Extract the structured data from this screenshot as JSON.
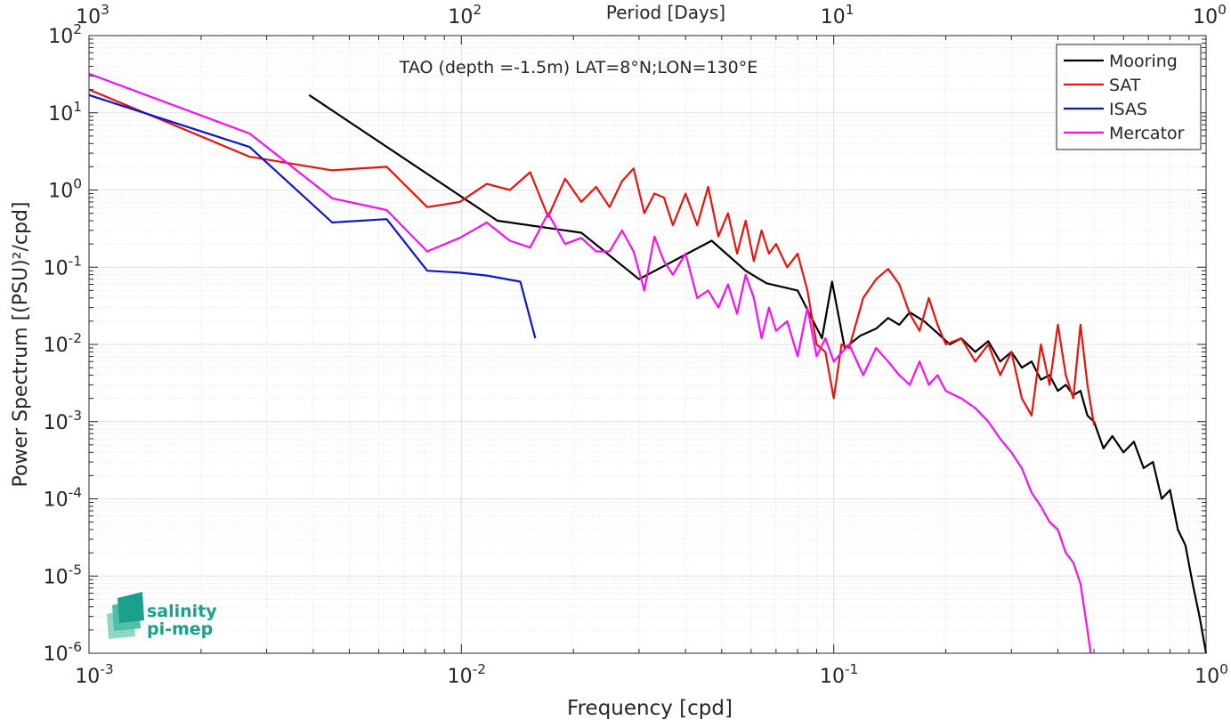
{
  "chart_data": {
    "type": "line",
    "title": "TAO (depth =-1.5m) LAT=8°N;LON=130°E",
    "xlabel": "Frequency [cpd]",
    "ylabel": "Power Spectrum [(PSU)²/cpd]",
    "top_xlabel": "Period [Days]",
    "x_scale": "log",
    "y_scale": "log",
    "xlim": [
      0.001,
      1
    ],
    "ylim": [
      1e-06,
      100
    ],
    "grid": true,
    "legend_position": "top-right",
    "x_ticks": [
      {
        "value": 0.001,
        "base": "10",
        "exp": "-3"
      },
      {
        "value": 0.01,
        "base": "10",
        "exp": "-2"
      },
      {
        "value": 0.1,
        "base": "10",
        "exp": "-1"
      },
      {
        "value": 1,
        "base": "10",
        "exp": "0"
      }
    ],
    "top_x_ticks": [
      {
        "value": 0.001,
        "base": "10",
        "exp": "3"
      },
      {
        "value": 0.01,
        "base": "10",
        "exp": "2"
      },
      {
        "value": 0.1,
        "base": "10",
        "exp": "1"
      },
      {
        "value": 1,
        "base": "10",
        "exp": "0"
      }
    ],
    "y_ticks": [
      {
        "value": 1e-06,
        "base": "10",
        "exp": "-6"
      },
      {
        "value": 1e-05,
        "base": "10",
        "exp": "-5"
      },
      {
        "value": 0.0001,
        "base": "10",
        "exp": "-4"
      },
      {
        "value": 0.001,
        "base": "10",
        "exp": "-3"
      },
      {
        "value": 0.01,
        "base": "10",
        "exp": "-2"
      },
      {
        "value": 0.1,
        "base": "10",
        "exp": "-1"
      },
      {
        "value": 1,
        "base": "10",
        "exp": "0"
      },
      {
        "value": 10,
        "base": "10",
        "exp": "1"
      },
      {
        "value": 100,
        "base": "10",
        "exp": "2"
      }
    ],
    "series": [
      {
        "name": "Mooring",
        "color": "#000000",
        "x": [
          0.0039,
          0.0125,
          0.021,
          0.03,
          0.047,
          0.058,
          0.066,
          0.08,
          0.093,
          0.099,
          0.107,
          0.118,
          0.13,
          0.14,
          0.15,
          0.16,
          0.175,
          0.19,
          0.205,
          0.22,
          0.24,
          0.26,
          0.28,
          0.3,
          0.32,
          0.34,
          0.36,
          0.38,
          0.4,
          0.42,
          0.44,
          0.46,
          0.48,
          0.5,
          0.53,
          0.56,
          0.6,
          0.64,
          0.68,
          0.72,
          0.76,
          0.8,
          0.84,
          0.88,
          0.92,
          0.96,
          1.0
        ],
        "y": [
          17,
          0.4,
          0.28,
          0.07,
          0.22,
          0.09,
          0.062,
          0.05,
          0.012,
          0.065,
          0.009,
          0.013,
          0.016,
          0.022,
          0.018,
          0.026,
          0.02,
          0.014,
          0.01,
          0.012,
          0.008,
          0.011,
          0.006,
          0.008,
          0.005,
          0.006,
          0.0035,
          0.004,
          0.0025,
          0.003,
          0.0022,
          0.0025,
          0.0012,
          0.001,
          0.00045,
          0.00065,
          0.0004,
          0.00055,
          0.00025,
          0.0003,
          0.0001,
          0.00013,
          4e-05,
          2.5e-05,
          8e-06,
          3e-06,
          1e-06
        ]
      },
      {
        "name": "SAT",
        "color": "#e8140c",
        "x": [
          0.001,
          0.0027,
          0.0045,
          0.0063,
          0.0081,
          0.0099,
          0.0117,
          0.0135,
          0.0153,
          0.0171,
          0.019,
          0.021,
          0.023,
          0.025,
          0.027,
          0.029,
          0.031,
          0.033,
          0.035,
          0.037,
          0.04,
          0.043,
          0.046,
          0.049,
          0.052,
          0.055,
          0.058,
          0.061,
          0.064,
          0.067,
          0.07,
          0.075,
          0.08,
          0.085,
          0.09,
          0.095,
          0.1,
          0.105,
          0.11,
          0.12,
          0.13,
          0.14,
          0.15,
          0.16,
          0.17,
          0.18,
          0.19,
          0.2,
          0.22,
          0.24,
          0.26,
          0.28,
          0.3,
          0.32,
          0.34,
          0.36,
          0.38,
          0.4,
          0.42,
          0.44,
          0.46,
          0.48,
          0.5
        ],
        "y": [
          20,
          2.7,
          1.8,
          2.0,
          0.6,
          0.7,
          1.2,
          1.0,
          1.7,
          0.45,
          1.4,
          0.7,
          1.1,
          0.6,
          1.3,
          1.9,
          0.5,
          0.9,
          0.8,
          0.35,
          0.9,
          0.35,
          1.1,
          0.25,
          0.5,
          0.15,
          0.4,
          0.12,
          0.3,
          0.15,
          0.2,
          0.1,
          0.15,
          0.05,
          0.01,
          0.008,
          0.002,
          0.01,
          0.009,
          0.04,
          0.07,
          0.095,
          0.06,
          0.025,
          0.015,
          0.04,
          0.018,
          0.01,
          0.012,
          0.006,
          0.01,
          0.004,
          0.008,
          0.002,
          0.0012,
          0.01,
          0.003,
          0.018,
          0.004,
          0.002,
          0.018,
          0.003,
          0.0009
        ]
      },
      {
        "name": "ISAS",
        "color": "#0a14d2",
        "x": [
          0.001,
          0.0027,
          0.0045,
          0.0063,
          0.0081,
          0.0099,
          0.0117,
          0.0144,
          0.0158
        ],
        "y": [
          17,
          3.6,
          0.38,
          0.42,
          0.09,
          0.085,
          0.078,
          0.065,
          0.012
        ]
      },
      {
        "name": "Mercator",
        "color": "#f50ff2",
        "x": [
          0.001,
          0.0027,
          0.0045,
          0.0063,
          0.0081,
          0.0099,
          0.0117,
          0.0135,
          0.0153,
          0.0171,
          0.019,
          0.021,
          0.023,
          0.025,
          0.027,
          0.029,
          0.031,
          0.033,
          0.035,
          0.037,
          0.04,
          0.043,
          0.046,
          0.049,
          0.052,
          0.055,
          0.058,
          0.061,
          0.064,
          0.067,
          0.07,
          0.075,
          0.08,
          0.085,
          0.09,
          0.095,
          0.1,
          0.11,
          0.12,
          0.13,
          0.14,
          0.15,
          0.16,
          0.17,
          0.18,
          0.19,
          0.2,
          0.22,
          0.24,
          0.26,
          0.28,
          0.3,
          0.32,
          0.34,
          0.36,
          0.38,
          0.4,
          0.42,
          0.44,
          0.46,
          0.48,
          0.49
        ],
        "y": [
          32,
          5.4,
          0.78,
          0.55,
          0.16,
          0.24,
          0.38,
          0.22,
          0.18,
          0.5,
          0.2,
          0.24,
          0.16,
          0.16,
          0.3,
          0.16,
          0.05,
          0.25,
          0.12,
          0.08,
          0.15,
          0.04,
          0.05,
          0.03,
          0.06,
          0.025,
          0.08,
          0.04,
          0.012,
          0.03,
          0.015,
          0.02,
          0.007,
          0.03,
          0.007,
          0.012,
          0.006,
          0.01,
          0.004,
          0.009,
          0.006,
          0.004,
          0.003,
          0.006,
          0.003,
          0.004,
          0.0025,
          0.002,
          0.0015,
          0.001,
          0.0006,
          0.0004,
          0.00025,
          0.00012,
          8e-05,
          5e-05,
          4e-05,
          2e-05,
          1.5e-05,
          8e-06,
          2e-06,
          1e-06
        ]
      }
    ]
  },
  "logo": {
    "line1": "salinity",
    "line2": "pi-mep",
    "color": "#1aa08c"
  }
}
